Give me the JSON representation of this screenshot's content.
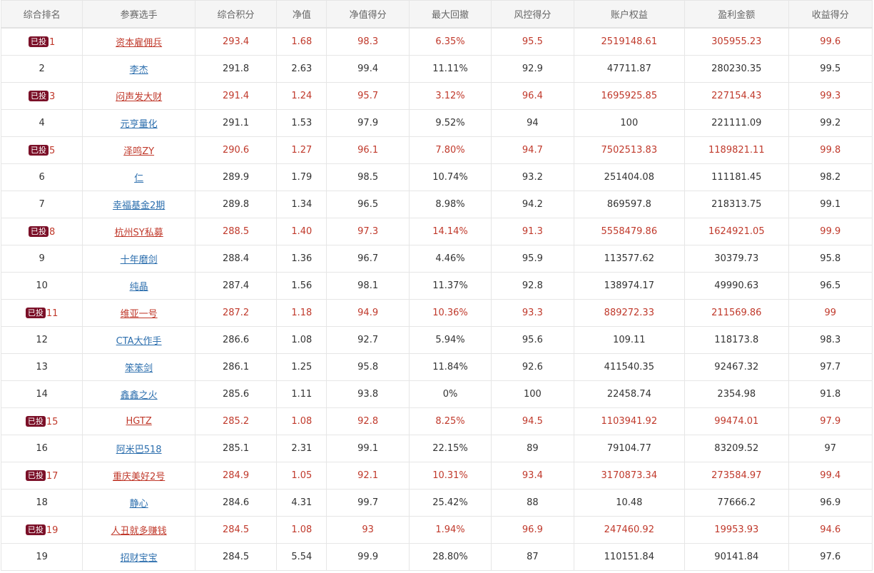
{
  "table": {
    "headers": [
      "综合排名",
      "参赛选手",
      "综合积分",
      "净值",
      "净值得分",
      "最大回撤",
      "风控得分",
      "账户权益",
      "盈利金额",
      "收益得分"
    ],
    "badge_label": "已投",
    "rows": [
      {
        "invested": true,
        "rank": "1",
        "name": "资本雇佣兵",
        "score": "293.4",
        "nav": "1.68",
        "nav_score": "98.3",
        "max_drawdown": "6.35%",
        "risk_score": "95.5",
        "equity": "2519148.61",
        "profit": "305955.23",
        "return_score": "99.6"
      },
      {
        "invested": false,
        "rank": "2",
        "name": "李杰",
        "score": "291.8",
        "nav": "2.63",
        "nav_score": "99.4",
        "max_drawdown": "11.11%",
        "risk_score": "92.9",
        "equity": "47711.87",
        "profit": "280230.35",
        "return_score": "99.5"
      },
      {
        "invested": true,
        "rank": "3",
        "name": "闷声发大财",
        "score": "291.4",
        "nav": "1.24",
        "nav_score": "95.7",
        "max_drawdown": "3.12%",
        "risk_score": "96.4",
        "equity": "1695925.85",
        "profit": "227154.43",
        "return_score": "99.3"
      },
      {
        "invested": false,
        "rank": "4",
        "name": "元亨量化",
        "score": "291.1",
        "nav": "1.53",
        "nav_score": "97.9",
        "max_drawdown": "9.52%",
        "risk_score": "94",
        "equity": "100",
        "profit": "221111.09",
        "return_score": "99.2"
      },
      {
        "invested": true,
        "rank": "5",
        "name": "泽鸣ZY",
        "score": "290.6",
        "nav": "1.27",
        "nav_score": "96.1",
        "max_drawdown": "7.80%",
        "risk_score": "94.7",
        "equity": "7502513.83",
        "profit": "1189821.11",
        "return_score": "99.8"
      },
      {
        "invested": false,
        "rank": "6",
        "name": "仁",
        "score": "289.9",
        "nav": "1.79",
        "nav_score": "98.5",
        "max_drawdown": "10.74%",
        "risk_score": "93.2",
        "equity": "251404.08",
        "profit": "111181.45",
        "return_score": "98.2"
      },
      {
        "invested": false,
        "rank": "7",
        "name": "幸福基金2期",
        "score": "289.8",
        "nav": "1.34",
        "nav_score": "96.5",
        "max_drawdown": "8.98%",
        "risk_score": "94.2",
        "equity": "869597.8",
        "profit": "218313.75",
        "return_score": "99.1"
      },
      {
        "invested": true,
        "rank": "8",
        "name": "杭州SY私募",
        "score": "288.5",
        "nav": "1.40",
        "nav_score": "97.3",
        "max_drawdown": "14.14%",
        "risk_score": "91.3",
        "equity": "5558479.86",
        "profit": "1624921.05",
        "return_score": "99.9"
      },
      {
        "invested": false,
        "rank": "9",
        "name": "十年磨剑",
        "score": "288.4",
        "nav": "1.36",
        "nav_score": "96.7",
        "max_drawdown": "4.46%",
        "risk_score": "95.9",
        "equity": "113577.62",
        "profit": "30379.73",
        "return_score": "95.8"
      },
      {
        "invested": false,
        "rank": "10",
        "name": "纯晶",
        "score": "287.4",
        "nav": "1.56",
        "nav_score": "98.1",
        "max_drawdown": "11.37%",
        "risk_score": "92.8",
        "equity": "138974.17",
        "profit": "49990.63",
        "return_score": "96.5"
      },
      {
        "invested": true,
        "rank": "11",
        "name": "维亚一号",
        "score": "287.2",
        "nav": "1.18",
        "nav_score": "94.9",
        "max_drawdown": "10.36%",
        "risk_score": "93.3",
        "equity": "889272.33",
        "profit": "211569.86",
        "return_score": "99"
      },
      {
        "invested": false,
        "rank": "12",
        "name": "CTA大作手",
        "score": "286.6",
        "nav": "1.08",
        "nav_score": "92.7",
        "max_drawdown": "5.94%",
        "risk_score": "95.6",
        "equity": "109.11",
        "profit": "118173.8",
        "return_score": "98.3"
      },
      {
        "invested": false,
        "rank": "13",
        "name": "笨笨剑",
        "score": "286.1",
        "nav": "1.25",
        "nav_score": "95.8",
        "max_drawdown": "11.84%",
        "risk_score": "92.6",
        "equity": "411540.35",
        "profit": "92467.32",
        "return_score": "97.7"
      },
      {
        "invested": false,
        "rank": "14",
        "name": "鑫鑫之火",
        "score": "285.6",
        "nav": "1.11",
        "nav_score": "93.8",
        "max_drawdown": "0%",
        "risk_score": "100",
        "equity": "22458.74",
        "profit": "2354.98",
        "return_score": "91.8"
      },
      {
        "invested": true,
        "rank": "15",
        "name": "HGTZ",
        "score": "285.2",
        "nav": "1.08",
        "nav_score": "92.8",
        "max_drawdown": "8.25%",
        "risk_score": "94.5",
        "equity": "1103941.92",
        "profit": "99474.01",
        "return_score": "97.9"
      },
      {
        "invested": false,
        "rank": "16",
        "name": "阿米巴518",
        "score": "285.1",
        "nav": "2.31",
        "nav_score": "99.1",
        "max_drawdown": "22.15%",
        "risk_score": "89",
        "equity": "79104.77",
        "profit": "83209.52",
        "return_score": "97"
      },
      {
        "invested": true,
        "rank": "17",
        "name": "重庆美好2号",
        "score": "284.9",
        "nav": "1.05",
        "nav_score": "92.1",
        "max_drawdown": "10.31%",
        "risk_score": "93.4",
        "equity": "3170873.34",
        "profit": "273584.97",
        "return_score": "99.4"
      },
      {
        "invested": false,
        "rank": "18",
        "name": "静心",
        "score": "284.6",
        "nav": "4.31",
        "nav_score": "99.7",
        "max_drawdown": "25.42%",
        "risk_score": "88",
        "equity": "10.48",
        "profit": "77666.2",
        "return_score": "96.9"
      },
      {
        "invested": true,
        "rank": "19",
        "name": "人丑就多赚钱",
        "score": "284.5",
        "nav": "1.08",
        "nav_score": "93",
        "max_drawdown": "1.94%",
        "risk_score": "96.9",
        "equity": "247460.92",
        "profit": "19953.93",
        "return_score": "94.6"
      },
      {
        "invested": false,
        "rank": "19",
        "name": "招财宝宝",
        "score": "284.5",
        "nav": "5.54",
        "nav_score": "99.9",
        "max_drawdown": "28.80%",
        "risk_score": "87",
        "equity": "110151.84",
        "profit": "90141.84",
        "return_score": "97.6"
      }
    ]
  },
  "colors": {
    "invested_text": "#c0392b",
    "link_text": "#2d6fae",
    "badge_bg": "#7b1028",
    "header_bg": "#f5f5f5"
  }
}
